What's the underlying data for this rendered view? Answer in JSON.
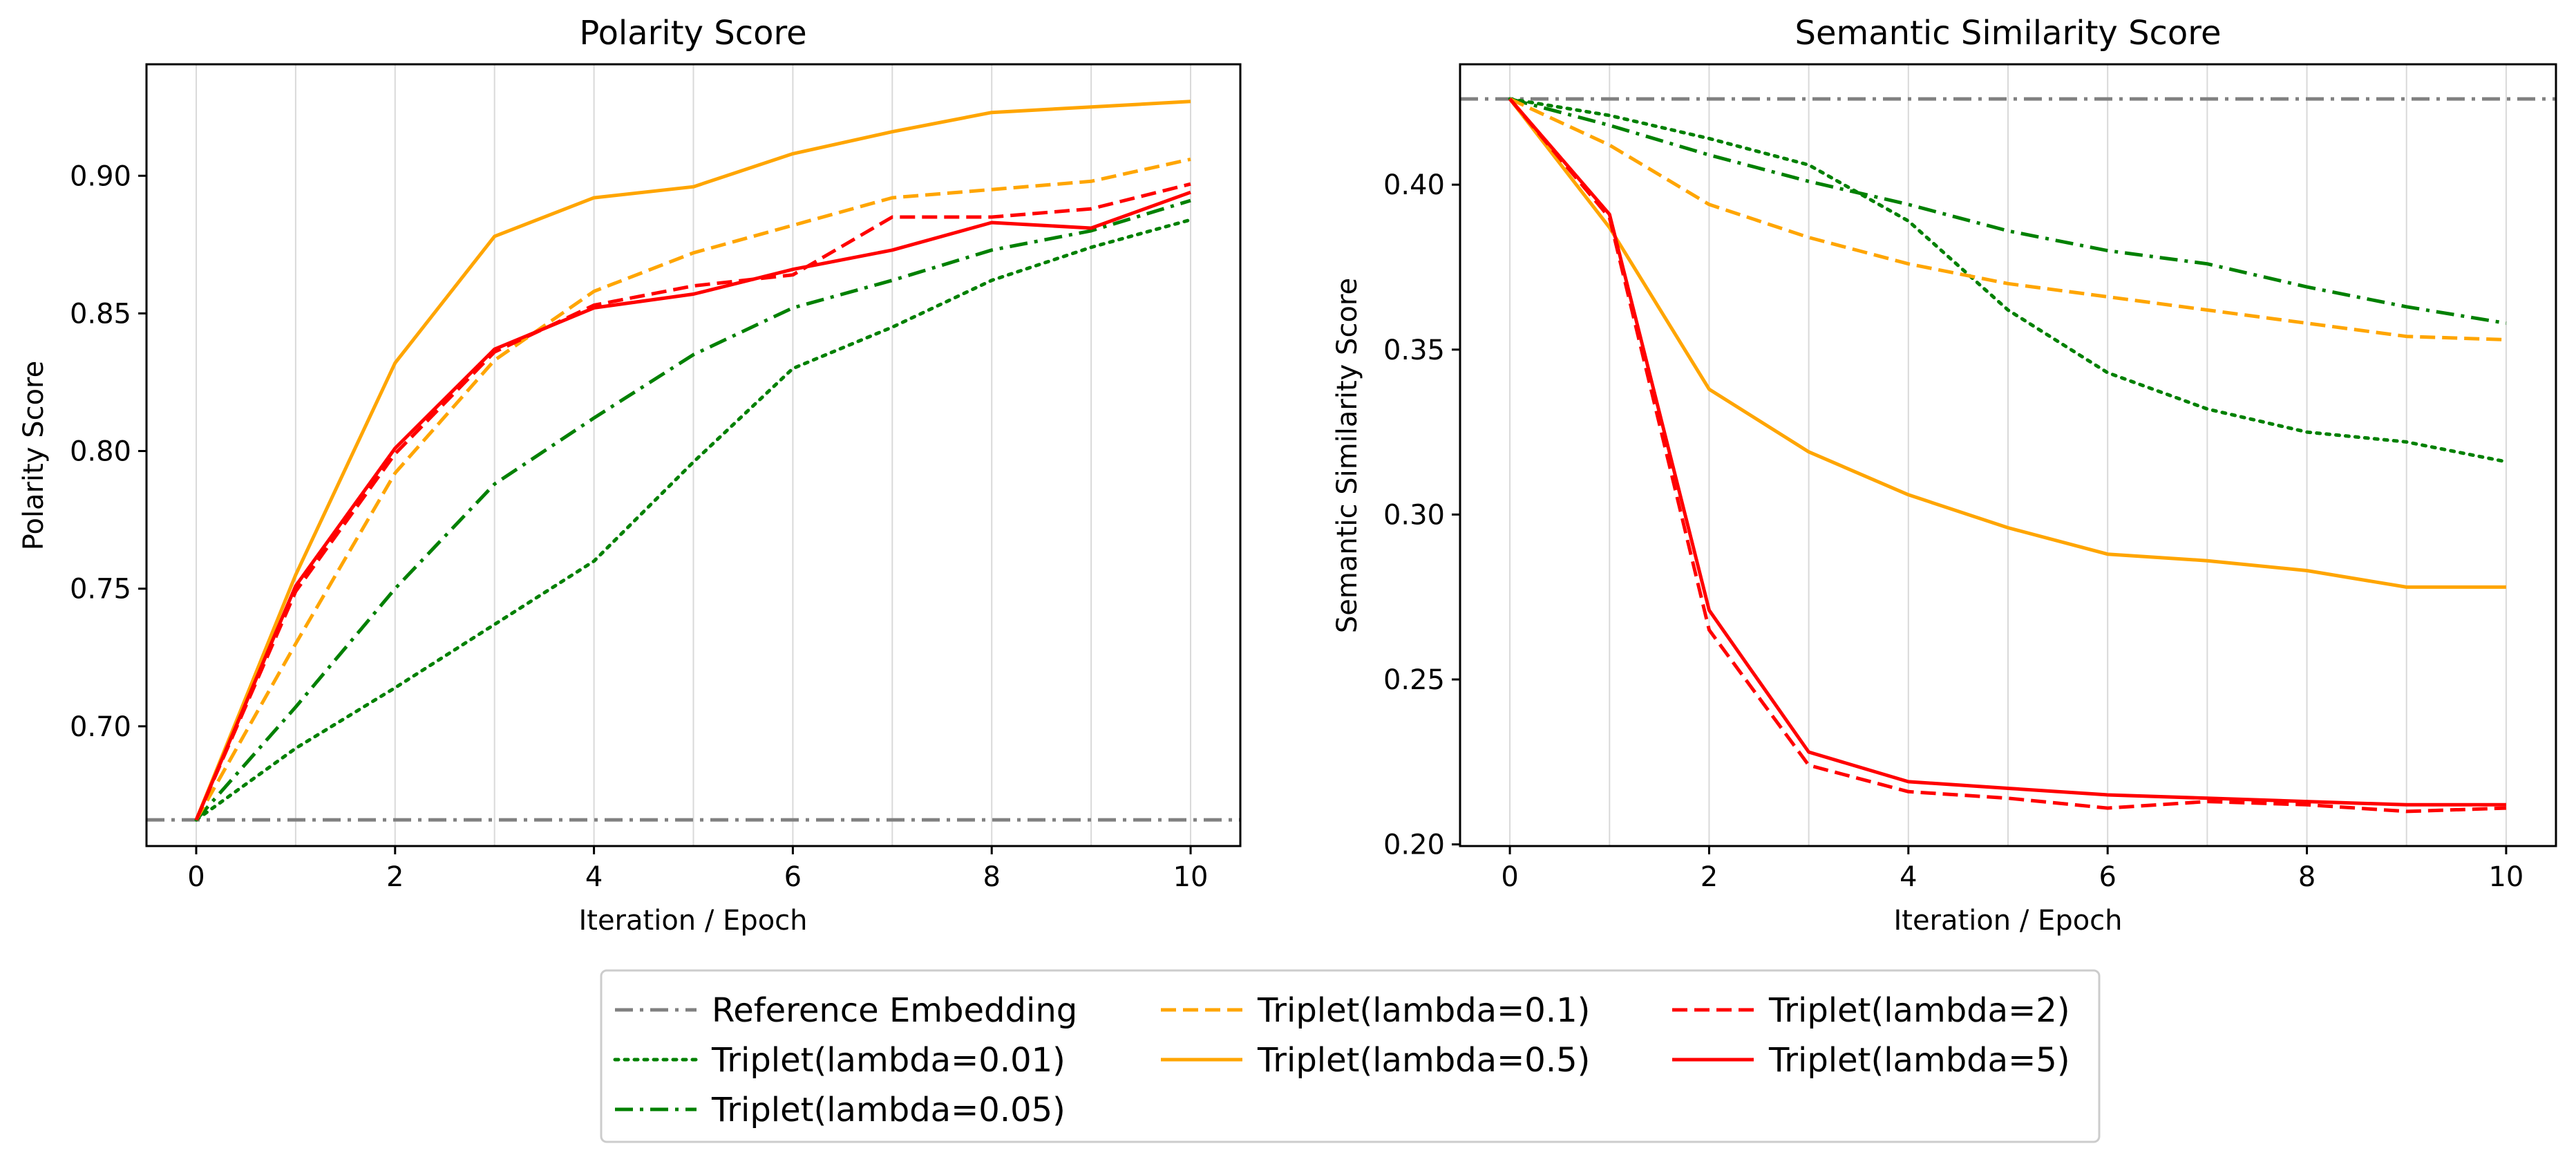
{
  "chart_data": [
    {
      "type": "line",
      "title": "Polarity Score",
      "xlabel": "Iteration / Epoch",
      "ylabel": "Polarity Score",
      "xlim": [
        -0.5,
        10.5
      ],
      "ylim": [
        0.6565,
        0.9405
      ],
      "xticks": [
        0,
        2,
        4,
        6,
        8,
        10
      ],
      "yticks": [
        0.7,
        0.75,
        0.8,
        0.85,
        0.9
      ],
      "ytick_labels": [
        "0.70",
        "0.75",
        "0.80",
        "0.85",
        "0.90"
      ],
      "vertical_grid": true,
      "x": [
        0,
        1,
        2,
        3,
        4,
        5,
        6,
        7,
        8,
        9,
        10
      ],
      "reference": 0.666,
      "series": [
        {
          "name": "Triplet(lambda=0.01)",
          "values": [
            0.666,
            0.692,
            0.714,
            0.737,
            0.76,
            0.796,
            0.83,
            0.845,
            0.862,
            0.874,
            0.884
          ]
        },
        {
          "name": "Triplet(lambda=0.05)",
          "values": [
            0.666,
            0.707,
            0.75,
            0.788,
            0.812,
            0.835,
            0.852,
            0.862,
            0.873,
            0.88,
            0.891
          ]
        },
        {
          "name": "Triplet(lambda=0.1)",
          "values": [
            0.666,
            0.73,
            0.792,
            0.833,
            0.858,
            0.872,
            0.882,
            0.892,
            0.895,
            0.898,
            0.906
          ]
        },
        {
          "name": "Triplet(lambda=0.5)",
          "values": [
            0.666,
            0.755,
            0.832,
            0.878,
            0.892,
            0.896,
            0.908,
            0.916,
            0.923,
            0.925,
            0.927
          ]
        },
        {
          "name": "Triplet(lambda=2)",
          "values": [
            0.666,
            0.749,
            0.799,
            0.836,
            0.853,
            0.86,
            0.864,
            0.885,
            0.885,
            0.888,
            0.897
          ]
        },
        {
          "name": "Triplet(lambda=5)",
          "values": [
            0.666,
            0.751,
            0.801,
            0.837,
            0.852,
            0.857,
            0.866,
            0.873,
            0.883,
            0.881,
            0.894
          ]
        }
      ]
    },
    {
      "type": "line",
      "title": "Semantic Similarity Score",
      "xlabel": "Iteration / Epoch",
      "ylabel": "Semantic Similarity Score",
      "xlim": [
        -0.5,
        10.5
      ],
      "ylim": [
        0.1995,
        0.4365
      ],
      "xticks": [
        0,
        2,
        4,
        6,
        8,
        10
      ],
      "yticks": [
        0.2,
        0.25,
        0.3,
        0.35,
        0.4
      ],
      "ytick_labels": [
        "0.20",
        "0.25",
        "0.30",
        "0.35",
        "0.40"
      ],
      "vertical_grid": true,
      "x": [
        0,
        1,
        2,
        3,
        4,
        5,
        6,
        7,
        8,
        9,
        10
      ],
      "reference": 0.426,
      "series": [
        {
          "name": "Triplet(lambda=0.01)",
          "values": [
            0.426,
            0.421,
            0.414,
            0.406,
            0.389,
            0.362,
            0.343,
            0.332,
            0.325,
            0.322,
            0.316
          ]
        },
        {
          "name": "Triplet(lambda=0.05)",
          "values": [
            0.426,
            0.418,
            0.409,
            0.401,
            0.394,
            0.386,
            0.38,
            0.376,
            0.369,
            0.363,
            0.358
          ]
        },
        {
          "name": "Triplet(lambda=0.1)",
          "values": [
            0.426,
            0.412,
            0.394,
            0.384,
            0.376,
            0.37,
            0.366,
            0.362,
            0.358,
            0.354,
            0.353
          ]
        },
        {
          "name": "Triplet(lambda=0.5)",
          "values": [
            0.426,
            0.387,
            0.338,
            0.319,
            0.306,
            0.296,
            0.288,
            0.286,
            0.283,
            0.278,
            0.278
          ]
        },
        {
          "name": "Triplet(lambda=2)",
          "values": [
            0.426,
            0.39,
            0.265,
            0.224,
            0.216,
            0.214,
            0.211,
            0.213,
            0.212,
            0.21,
            0.211
          ]
        },
        {
          "name": "Triplet(lambda=5)",
          "values": [
            0.426,
            0.391,
            0.271,
            0.228,
            0.219,
            0.217,
            0.215,
            0.214,
            0.213,
            0.212,
            0.212
          ]
        }
      ]
    }
  ],
  "legend": {
    "placement": "bottom-center",
    "entries": [
      {
        "label": "Reference Embedding",
        "color": "#808080",
        "style": "dashdot"
      },
      {
        "label": "Triplet(lambda=0.01)",
        "color": "#008000",
        "style": "dotted"
      },
      {
        "label": "Triplet(lambda=0.05)",
        "color": "#008000",
        "style": "dashdot"
      },
      {
        "label": "Triplet(lambda=0.1)",
        "color": "#FFA500",
        "style": "dashed"
      },
      {
        "label": "Triplet(lambda=0.5)",
        "color": "#FFA500",
        "style": "solid"
      },
      {
        "label": "Triplet(lambda=2)",
        "color": "#FF0000",
        "style": "dashed"
      },
      {
        "label": "Triplet(lambda=5)",
        "color": "#FF0000",
        "style": "solid"
      }
    ]
  },
  "series_colors": [
    "#008000",
    "#008000",
    "#FFA500",
    "#FFA500",
    "#FF0000",
    "#FF0000"
  ],
  "series_styles": [
    "dotted",
    "dashdot",
    "dashed",
    "solid",
    "dashed",
    "solid"
  ],
  "reference_color": "#808080"
}
